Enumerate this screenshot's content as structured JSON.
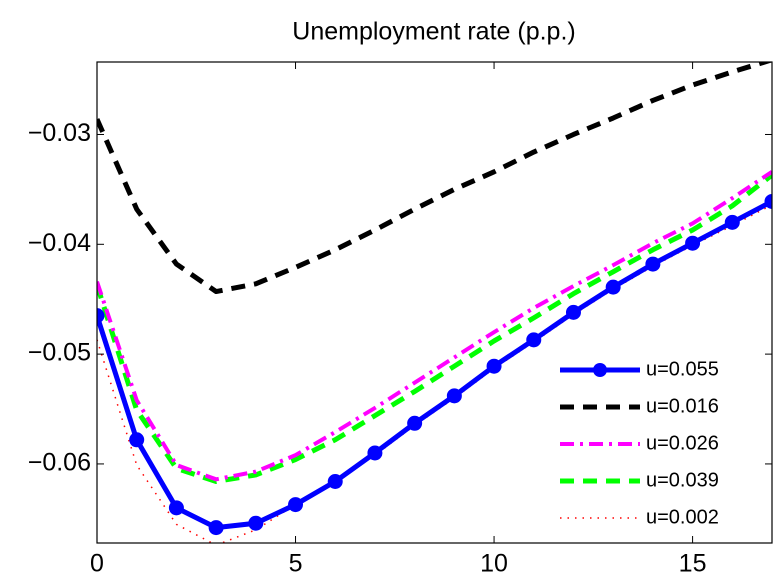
{
  "chart_data": {
    "type": "line",
    "title": "Unemployment rate (p.p.)",
    "x": [
      0,
      1,
      2,
      3,
      4,
      5,
      6,
      7,
      8,
      9,
      10,
      11,
      12,
      13,
      14,
      15,
      16,
      17
    ],
    "xlim": [
      0,
      17
    ],
    "xticks": [
      0,
      5,
      10,
      15
    ],
    "ylim": [
      -0.0672,
      -0.0234
    ],
    "yticks": [
      {
        "value": -0.06,
        "label": "−0.06"
      },
      {
        "value": -0.05,
        "label": "−0.05"
      },
      {
        "value": -0.04,
        "label": "−0.04"
      },
      {
        "value": -0.03,
        "label": "−0.03"
      }
    ],
    "legend": "lower right",
    "series": [
      {
        "name": "u=0.055",
        "color": "#0000ff",
        "linestyle": "solid",
        "marker": "o",
        "values": [
          -0.0465,
          -0.0578,
          -0.064,
          -0.0658,
          -0.0654,
          -0.0637,
          -0.0616,
          -0.059,
          -0.0563,
          -0.0538,
          -0.0511,
          -0.0487,
          -0.0462,
          -0.0439,
          -0.0418,
          -0.0399,
          -0.038,
          -0.0361
        ]
      },
      {
        "name": "u=0.016",
        "color": "#000000",
        "linestyle": "dashed",
        "values": [
          -0.0286,
          -0.0368,
          -0.0418,
          -0.0443,
          -0.0436,
          -0.0421,
          -0.0405,
          -0.0387,
          -0.0368,
          -0.035,
          -0.0334,
          -0.0316,
          -0.03,
          -0.0285,
          -0.0269,
          -0.0255,
          -0.0243,
          -0.0232
        ]
      },
      {
        "name": "u=0.026",
        "color": "#ff00ff",
        "linestyle": "dashdot",
        "values": [
          -0.0434,
          -0.0542,
          -0.0601,
          -0.0614,
          -0.0607,
          -0.0592,
          -0.0571,
          -0.0549,
          -0.0526,
          -0.0503,
          -0.048,
          -0.0458,
          -0.0438,
          -0.0419,
          -0.0399,
          -0.0381,
          -0.0358,
          -0.0334
        ]
      },
      {
        "name": "u=0.039",
        "color": "#00ff00",
        "linestyle": "dashed",
        "values": [
          -0.0437,
          -0.0551,
          -0.0604,
          -0.0616,
          -0.061,
          -0.0596,
          -0.0578,
          -0.0556,
          -0.0534,
          -0.0511,
          -0.0488,
          -0.0467,
          -0.0445,
          -0.0425,
          -0.0405,
          -0.0387,
          -0.0365,
          -0.0337
        ]
      },
      {
        "name": "u=0.002",
        "color": "#ff0000",
        "linestyle": "dotted",
        "values": [
          -0.0487,
          -0.0601,
          -0.0655,
          -0.0674,
          -0.066,
          -0.0637,
          -0.0616,
          -0.0592,
          -0.0565,
          -0.054,
          -0.0513,
          -0.0489,
          -0.0464,
          -0.0441,
          -0.042,
          -0.0401,
          -0.0383,
          -0.0364
        ]
      }
    ]
  }
}
